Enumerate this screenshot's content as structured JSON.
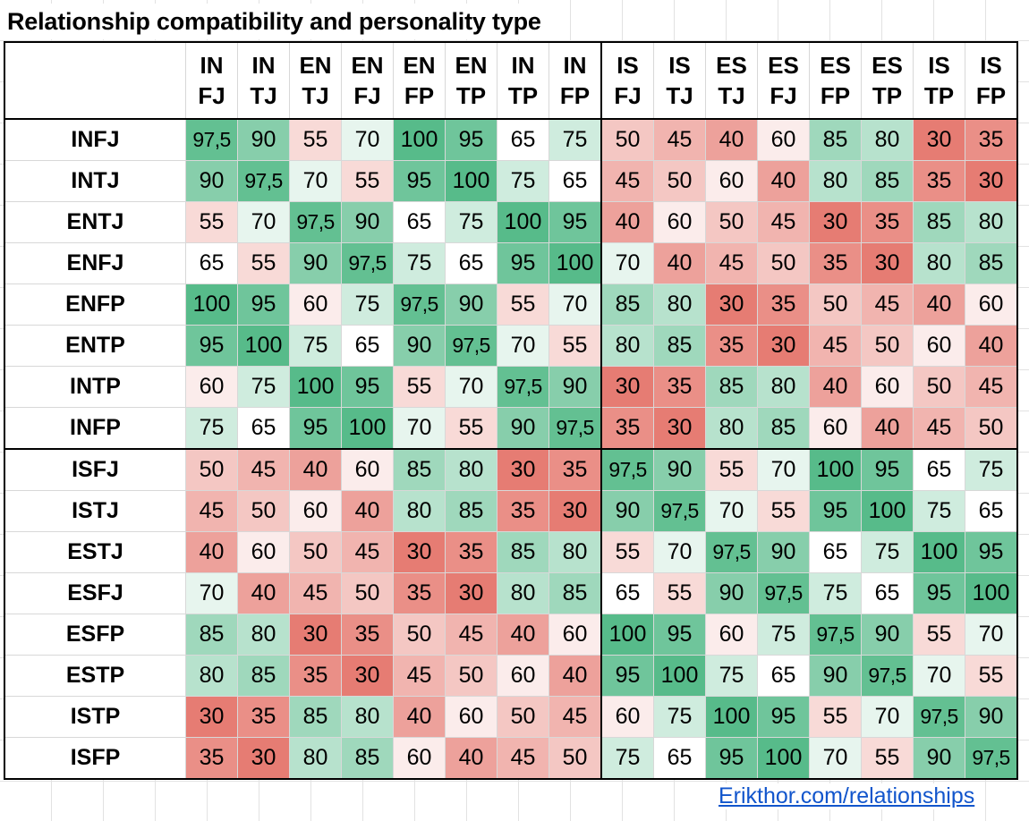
{
  "title": "Relationship compatibility and personality type",
  "link_text": "Erikthor.com/relationships",
  "columns": [
    [
      "IN",
      "FJ"
    ],
    [
      "IN",
      "TJ"
    ],
    [
      "EN",
      "TJ"
    ],
    [
      "EN",
      "FJ"
    ],
    [
      "EN",
      "FP"
    ],
    [
      "EN",
      "TP"
    ],
    [
      "IN",
      "TP"
    ],
    [
      "IN",
      "FP"
    ],
    [
      "IS",
      "FJ"
    ],
    [
      "IS",
      "TJ"
    ],
    [
      "ES",
      "TJ"
    ],
    [
      "ES",
      "FJ"
    ],
    [
      "ES",
      "FP"
    ],
    [
      "ES",
      "TP"
    ],
    [
      "IS",
      "TP"
    ],
    [
      "IS",
      "FP"
    ]
  ],
  "rows": [
    {
      "label": "INFJ",
      "values": [
        "97,5",
        "90",
        "55",
        "70",
        "100",
        "95",
        "65",
        "75",
        "50",
        "45",
        "40",
        "60",
        "85",
        "80",
        "30",
        "35"
      ]
    },
    {
      "label": "INTJ",
      "values": [
        "90",
        "97,5",
        "70",
        "55",
        "95",
        "100",
        "75",
        "65",
        "45",
        "50",
        "60",
        "40",
        "80",
        "85",
        "35",
        "30"
      ]
    },
    {
      "label": "ENTJ",
      "values": [
        "55",
        "70",
        "97,5",
        "90",
        "65",
        "75",
        "100",
        "95",
        "40",
        "60",
        "50",
        "45",
        "30",
        "35",
        "85",
        "80"
      ]
    },
    {
      "label": "ENFJ",
      "values": [
        "65",
        "55",
        "90",
        "97,5",
        "75",
        "65",
        "95",
        "100",
        "70",
        "40",
        "45",
        "50",
        "35",
        "30",
        "80",
        "85"
      ]
    },
    {
      "label": "ENFP",
      "values": [
        "100",
        "95",
        "60",
        "75",
        "97,5",
        "90",
        "55",
        "70",
        "85",
        "80",
        "30",
        "35",
        "50",
        "45",
        "40",
        "60"
      ]
    },
    {
      "label": "ENTP",
      "values": [
        "95",
        "100",
        "75",
        "65",
        "90",
        "97,5",
        "70",
        "55",
        "80",
        "85",
        "35",
        "30",
        "45",
        "50",
        "60",
        "40"
      ]
    },
    {
      "label": "INTP",
      "values": [
        "60",
        "75",
        "100",
        "95",
        "55",
        "70",
        "97,5",
        "90",
        "30",
        "35",
        "85",
        "80",
        "40",
        "60",
        "50",
        "45"
      ]
    },
    {
      "label": "INFP",
      "values": [
        "75",
        "65",
        "95",
        "100",
        "70",
        "55",
        "90",
        "97,5",
        "35",
        "30",
        "80",
        "85",
        "60",
        "40",
        "45",
        "50"
      ]
    },
    {
      "label": "ISFJ",
      "values": [
        "50",
        "45",
        "40",
        "60",
        "85",
        "80",
        "30",
        "35",
        "97,5",
        "90",
        "55",
        "70",
        "100",
        "95",
        "65",
        "75"
      ]
    },
    {
      "label": "ISTJ",
      "values": [
        "45",
        "50",
        "60",
        "40",
        "80",
        "85",
        "35",
        "30",
        "90",
        "97,5",
        "70",
        "55",
        "95",
        "100",
        "75",
        "65"
      ]
    },
    {
      "label": "ESTJ",
      "values": [
        "40",
        "60",
        "50",
        "45",
        "30",
        "35",
        "85",
        "80",
        "55",
        "70",
        "97,5",
        "90",
        "65",
        "75",
        "100",
        "95"
      ]
    },
    {
      "label": "ESFJ",
      "values": [
        "70",
        "40",
        "45",
        "50",
        "35",
        "30",
        "80",
        "85",
        "65",
        "55",
        "90",
        "97,5",
        "75",
        "65",
        "95",
        "100"
      ]
    },
    {
      "label": "ESFP",
      "values": [
        "85",
        "80",
        "30",
        "35",
        "50",
        "45",
        "40",
        "60",
        "100",
        "95",
        "60",
        "75",
        "97,5",
        "90",
        "55",
        "70"
      ]
    },
    {
      "label": "ESTP",
      "values": [
        "80",
        "85",
        "35",
        "30",
        "45",
        "50",
        "60",
        "40",
        "95",
        "100",
        "75",
        "65",
        "90",
        "97,5",
        "70",
        "55"
      ]
    },
    {
      "label": "ISTP",
      "values": [
        "30",
        "35",
        "85",
        "80",
        "40",
        "60",
        "50",
        "45",
        "60",
        "75",
        "100",
        "95",
        "55",
        "70",
        "97,5",
        "90"
      ]
    },
    {
      "label": "ISFP",
      "values": [
        "35",
        "30",
        "80",
        "85",
        "60",
        "40",
        "45",
        "50",
        "75",
        "65",
        "95",
        "100",
        "70",
        "55",
        "90",
        "97,5"
      ]
    }
  ],
  "colors": {
    "low": "#e67c73",
    "mid": "#ffffff",
    "high": "#57bb8a",
    "link": "#1155cc"
  }
}
